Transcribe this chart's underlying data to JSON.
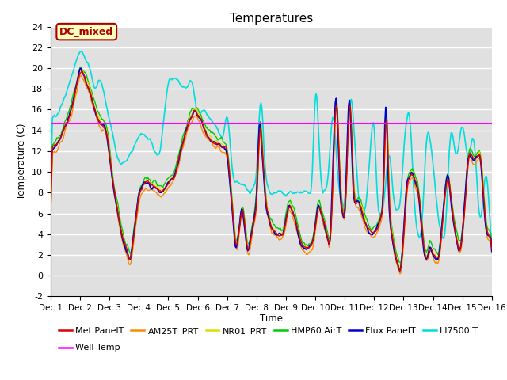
{
  "title": "Temperatures",
  "xlabel": "Time",
  "ylabel": "Temperature (C)",
  "ylim": [
    -2,
    24
  ],
  "yticks": [
    -2,
    0,
    2,
    4,
    6,
    8,
    10,
    12,
    14,
    16,
    18,
    20,
    22,
    24
  ],
  "xtick_labels": [
    "Dec 1",
    "Dec 2",
    "Dec 3",
    "Dec 4",
    "Dec 5",
    "Dec 6",
    "Dec 7",
    "Dec 8",
    "Dec 9",
    "Dec 10",
    "Dec 11",
    "Dec 12",
    "Dec 13",
    "Dec 14",
    "Dec 15",
    "Dec 16"
  ],
  "well_temp": 14.7,
  "dc_mixed_label": "DC_mixed",
  "series_colors": {
    "Met_PanelT": "#dd0000",
    "AM25T_PRT": "#ff8800",
    "NR01_PRT": "#dddd00",
    "HMP60_AirT": "#00cc00",
    "Flux_PanelT": "#0000cc",
    "LI7500_T": "#00dddd"
  },
  "legend_labels": [
    "Met PanelT",
    "AM25T_PRT",
    "NR01_PRT",
    "HMP60 AirT",
    "Flux PanelT",
    "LI7500 T",
    "Well Temp"
  ],
  "legend_colors": [
    "#dd0000",
    "#ff8800",
    "#dddd00",
    "#00cc00",
    "#0000cc",
    "#00dddd",
    "#ff00ff"
  ],
  "bg_color": "#e0e0e0",
  "dc_box_facecolor": "#ffffc0",
  "dc_box_edgecolor": "#aa0000",
  "dc_text_color": "#aa0000"
}
